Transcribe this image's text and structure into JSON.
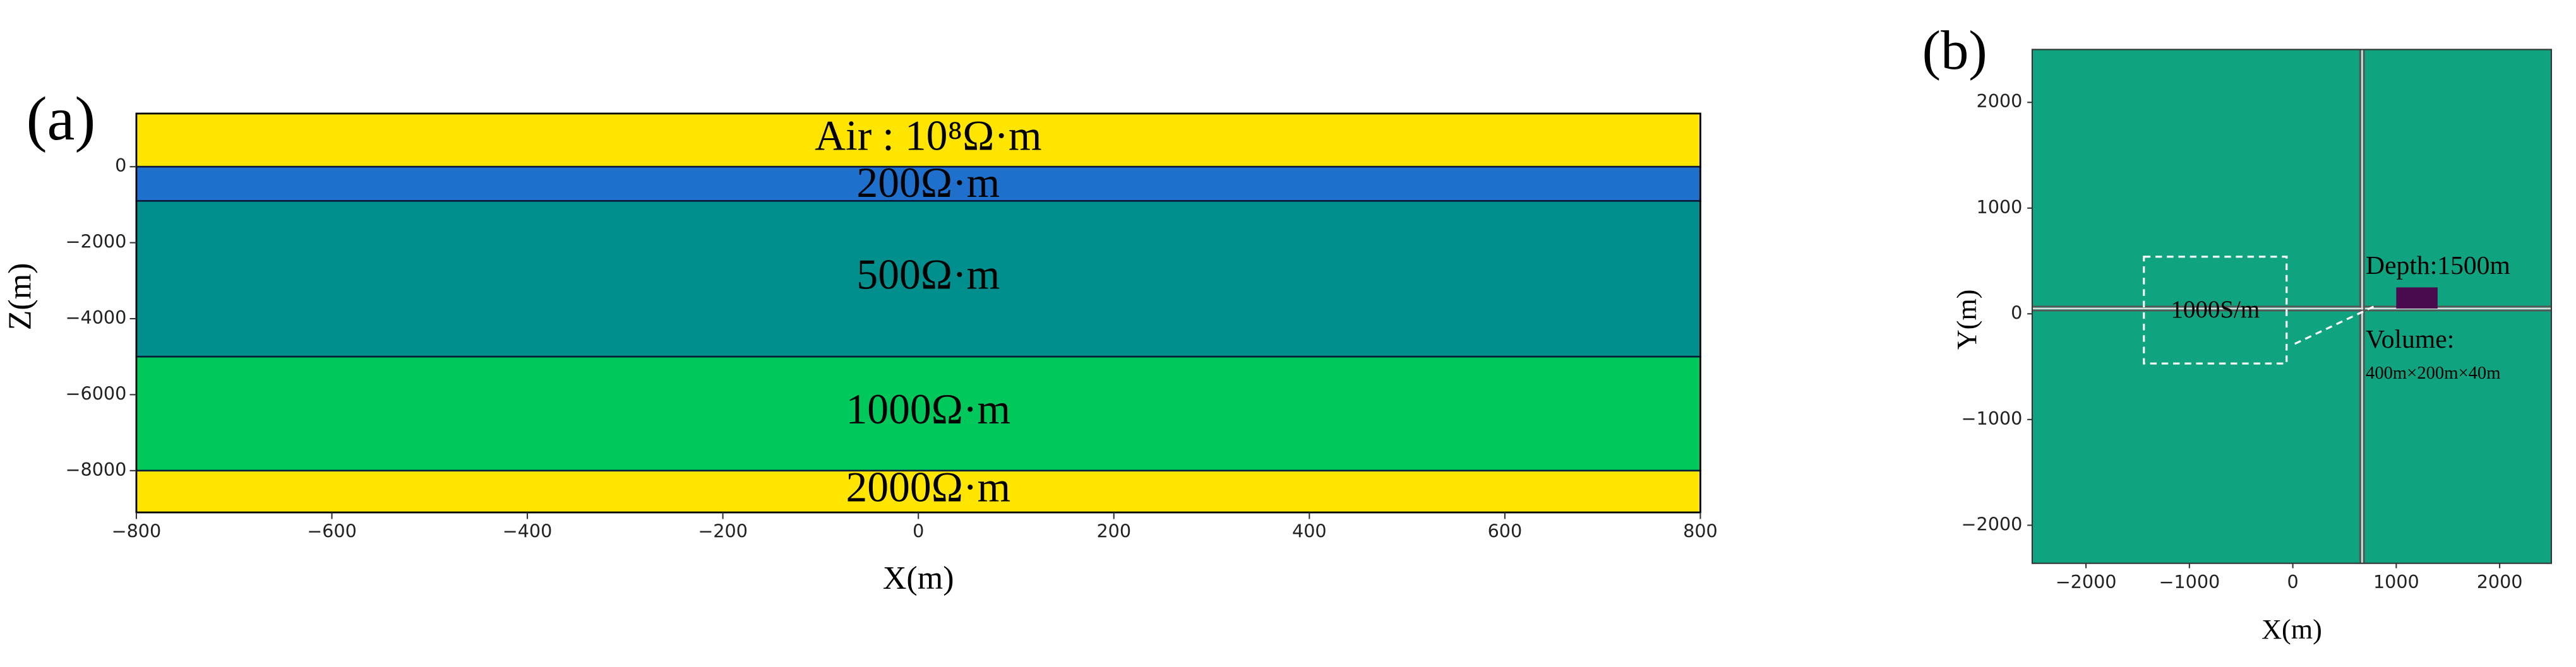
{
  "chart_data": [
    {
      "type": "layers",
      "panel_label": "(a)",
      "xlabel": "X(m)",
      "ylabel": "Z(m)",
      "xlim": [
        -800,
        800
      ],
      "ylim": [
        -9100,
        1400
      ],
      "xticks": [
        {
          "value": -800,
          "label": "−800"
        },
        {
          "value": -600,
          "label": "−600"
        },
        {
          "value": -400,
          "label": "−400"
        },
        {
          "value": -200,
          "label": "−200"
        },
        0,
        200,
        400,
        600,
        800
      ],
      "yticks": [
        0,
        {
          "value": -2000,
          "label": "−2000"
        },
        {
          "value": -4000,
          "label": "−4000"
        },
        {
          "value": -6000,
          "label": "−6000"
        },
        {
          "value": -8000,
          "label": "−8000"
        }
      ],
      "layers": [
        {
          "label": "Air : 10⁸Ω·m",
          "top": 1400,
          "bottom": 0,
          "color": "#ffe500"
        },
        {
          "label": "200Ω·m",
          "top": 0,
          "bottom": -900,
          "color": "#1f6fcc"
        },
        {
          "label": "500Ω·m",
          "top": -900,
          "bottom": -5000,
          "color": "#008f8c"
        },
        {
          "label": "1000Ω·m",
          "top": -5000,
          "bottom": -8000,
          "color": "#00c85a"
        },
        {
          "label": "2000Ω·m",
          "top": -8000,
          "bottom": -9100,
          "color": "#ffe500"
        }
      ]
    },
    {
      "type": "map",
      "panel_label": "(b)",
      "xlabel": "X(m)",
      "ylabel": "Y(m)",
      "xlim": [
        -2520,
        2500
      ],
      "ylim": [
        -2360,
        2500
      ],
      "xticks": [
        {
          "value": -2000,
          "label": "−2000"
        },
        {
          "value": -1000,
          "label": "−1000"
        },
        0,
        1000,
        2000
      ],
      "yticks": [
        2000,
        1000,
        0,
        {
          "value": -1000,
          "label": "−1000"
        },
        {
          "value": -2000,
          "label": "−2000"
        }
      ],
      "background": "#10a37f",
      "profile_x": 670,
      "profile_y": 50,
      "body": {
        "x": [
          1000,
          1400
        ],
        "y": [
          50,
          250
        ],
        "color": "#4a0a4e"
      },
      "box": {
        "label": "1000S/m",
        "x": [
          -1440,
          -60
        ],
        "y": [
          -470,
          540
        ]
      },
      "annotations": [
        "Depth:1500m",
        "Volume:",
        "400m×200m×40m"
      ]
    }
  ]
}
